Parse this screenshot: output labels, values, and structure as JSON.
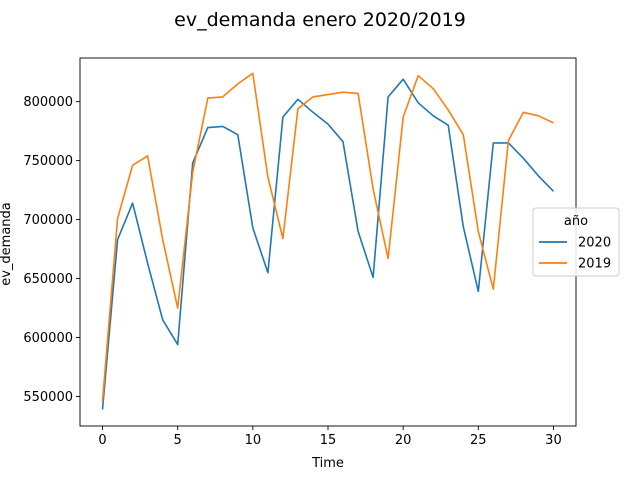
{
  "chart_data": {
    "type": "line",
    "title": "ev_demanda enero 2020/2019",
    "xlabel": "Time",
    "ylabel": "ev_demanda",
    "xlim": [
      -1.5,
      31.5
    ],
    "ylim": [
      525000,
      837000
    ],
    "xticks": [
      0,
      5,
      10,
      15,
      20,
      25,
      30
    ],
    "xtick_labels": [
      "0",
      "5",
      "10",
      "15",
      "20",
      "25",
      "30"
    ],
    "yticks": [
      550000,
      600000,
      650000,
      700000,
      750000,
      800000
    ],
    "ytick_labels": [
      "550000",
      "600000",
      "650000",
      "700000",
      "750000",
      "800000"
    ],
    "grid": false,
    "legend": {
      "title": "año",
      "placement": "right"
    },
    "x": [
      0,
      1,
      2,
      3,
      4,
      5,
      6,
      7,
      8,
      9,
      10,
      11,
      12,
      13,
      14,
      15,
      16,
      17,
      18,
      19,
      20,
      21,
      22,
      23,
      24,
      25,
      26,
      27,
      28,
      29,
      30
    ],
    "series": [
      {
        "name": "2020",
        "color": "#1f77b4",
        "values": [
          539000,
          683000,
          714000,
          663000,
          615000,
          594000,
          748000,
          778000,
          779000,
          772000,
          693000,
          655000,
          787000,
          802000,
          791000,
          781000,
          766000,
          690000,
          651000,
          804000,
          819000,
          799000,
          788000,
          780000,
          694000,
          639000,
          765000,
          765000,
          752000,
          737000,
          724000
        ]
      },
      {
        "name": "2019",
        "color": "#ff7f0e",
        "values": [
          546000,
          701000,
          746000,
          754000,
          683000,
          625000,
          740000,
          803000,
          804000,
          815000,
          824000,
          736000,
          684000,
          794000,
          804000,
          806000,
          808000,
          807000,
          726000,
          667000,
          787000,
          822000,
          811000,
          793000,
          772000,
          690000,
          641000,
          767000,
          791000,
          788000,
          782000
        ]
      }
    ]
  }
}
